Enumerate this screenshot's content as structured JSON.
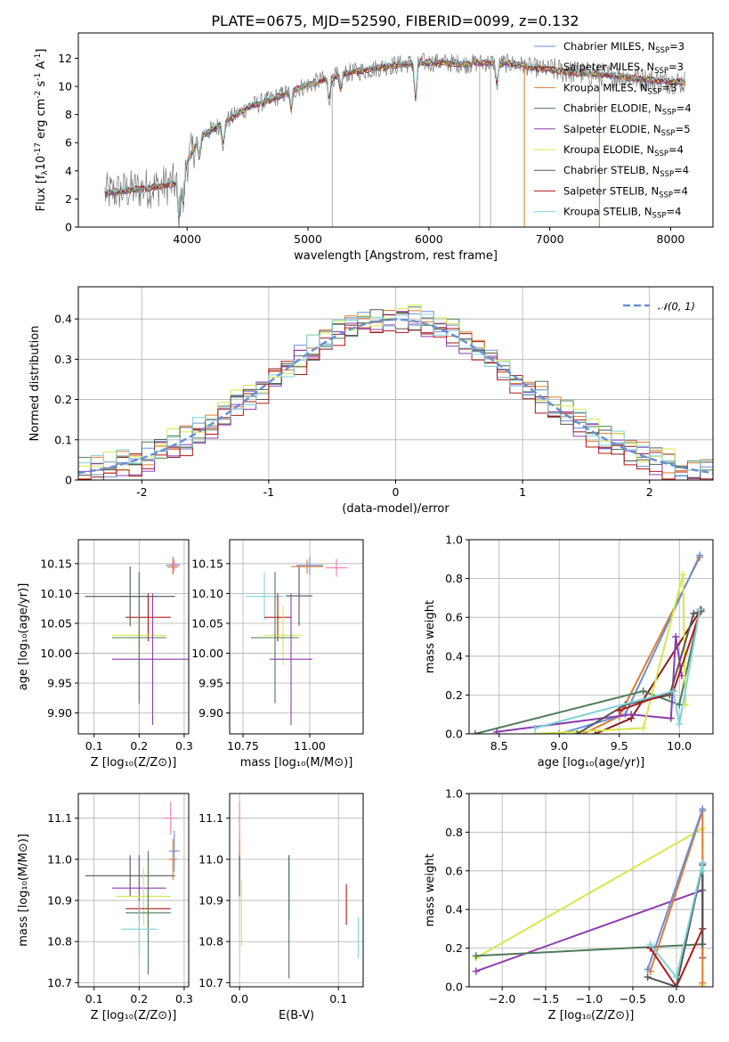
{
  "figure_title": "PLATE=0675, MJD=52590, FIBERID=0099, z=0.132",
  "colors": {
    "chabrier_miles": "#6a8fd8",
    "salpeter_miles": "#8b1a1a",
    "kroupa_miles": "#e07a2e",
    "chabrier_elodie": "#4e7a5a",
    "salpeter_elodie": "#8e3cb0",
    "kroupa_elodie": "#d4e84a",
    "chabrier_stelib": "#555555",
    "salpeter_stelib": "#b01818",
    "kroupa_stelib": "#7fd3d8",
    "data": "#777777",
    "normal": "#6a8fd8",
    "pink": "#f07ab0"
  },
  "chart_data": [
    {
      "id": "spectrum",
      "type": "line",
      "title": "PLATE=0675, MJD=52590, FIBERID=0099, z=0.132",
      "xlabel": "wavelength [Angstrom, rest frame]",
      "ylabel_parts": [
        "Flux [f",
        "λ",
        "10",
        "-17",
        " erg cm",
        "-2",
        " s",
        "-1",
        " A",
        "-1",
        "]"
      ],
      "xlim": [
        3100,
        8350
      ],
      "ylim": [
        0,
        13.8
      ],
      "xticks": [
        4000,
        5000,
        6000,
        7000,
        8000
      ],
      "yticks": [
        0,
        2,
        4,
        6,
        8,
        10,
        12
      ],
      "legend_position": "right",
      "legend": [
        {
          "label": "Chabrier MILES, N",
          "sub": "SSP",
          "suffix": "=3",
          "color_key": "chabrier_miles"
        },
        {
          "label": "Salpeter MILES, N",
          "sub": "SSP",
          "suffix": "=3",
          "color_key": "salpeter_miles"
        },
        {
          "label": "Kroupa MILES, N",
          "sub": "SSP",
          "suffix": "=3",
          "color_key": "kroupa_miles"
        },
        {
          "label": "Chabrier ELODIE, N",
          "sub": "SSP",
          "suffix": "=4",
          "color_key": "chabrier_elodie"
        },
        {
          "label": "Salpeter ELODIE, N",
          "sub": "SSP",
          "suffix": "=5",
          "color_key": "salpeter_elodie"
        },
        {
          "label": "Kroupa ELODIE, N",
          "sub": "SSP",
          "suffix": "=4",
          "color_key": "kroupa_elodie"
        },
        {
          "label": "Chabrier STELIB, N",
          "sub": "SSP",
          "suffix": "=4",
          "color_key": "chabrier_stelib"
        },
        {
          "label": "Salpeter STELIB, N",
          "sub": "SSP",
          "suffix": "=4",
          "color_key": "salpeter_stelib"
        },
        {
          "label": "Kroupa STELIB, N",
          "sub": "SSP",
          "suffix": "=4",
          "color_key": "kroupa_stelib"
        }
      ],
      "continuum": {
        "x": [
          3320,
          3500,
          3700,
          3900,
          4000,
          4100,
          4300,
          4500,
          4700,
          4900,
          5100,
          5300,
          5500,
          5700,
          5900,
          6100,
          6300,
          6500,
          6700,
          6900,
          7100,
          7300,
          7500,
          7700,
          7900,
          8100
        ],
        "y": [
          2.4,
          2.6,
          2.8,
          3.1,
          4.6,
          6.4,
          7.4,
          8.5,
          9.1,
          9.8,
          10.4,
          10.9,
          11.2,
          11.5,
          11.7,
          11.7,
          11.6,
          11.7,
          11.6,
          11.3,
          11.1,
          10.9,
          10.8,
          10.6,
          10.4,
          10.3
        ]
      }
    },
    {
      "id": "residuals",
      "type": "histogram",
      "xlabel": "(data-model)/error",
      "ylabel": "Normed distribution",
      "xlim": [
        -2.5,
        2.5
      ],
      "ylim": [
        0,
        0.48
      ],
      "xticks": [
        -2,
        -1,
        0,
        1,
        2
      ],
      "yticks": [
        0.0,
        0.1,
        0.2,
        0.3,
        0.4
      ],
      "grid": true,
      "legend_position": "top-right",
      "legend": [
        {
          "label": "𝒩(0, 1)",
          "color_key": "normal",
          "style": "dashed"
        }
      ],
      "bin_width": 0.1,
      "bins_from": -2.5,
      "series": [
        {
          "color_key": "chabrier_miles",
          "offset": 0.004
        },
        {
          "color_key": "salpeter_miles",
          "offset": -0.003
        },
        {
          "color_key": "kroupa_miles",
          "offset": 0.006
        },
        {
          "color_key": "chabrier_elodie",
          "offset": 0.01
        },
        {
          "color_key": "salpeter_elodie",
          "offset": -0.008
        },
        {
          "color_key": "kroupa_elodie",
          "offset": 0.012
        },
        {
          "color_key": "chabrier_stelib",
          "offset": 0.0
        },
        {
          "color_key": "salpeter_stelib",
          "offset": -0.012
        },
        {
          "color_key": "kroupa_stelib",
          "offset": 0.008
        }
      ]
    },
    {
      "id": "age_vs_Z",
      "type": "errorbar",
      "xlabel": "Z [log₁₀(Z/Z⊙)]",
      "ylabel": "age  [log₁₀(age/yr)]",
      "xlim": [
        0.065,
        0.31
      ],
      "ylim": [
        9.865,
        10.19
      ],
      "xticks": [
        0.1,
        0.2,
        0.3
      ],
      "xtick_labels": [
        "0.1",
        "0.2",
        "0.3"
      ],
      "yticks": [
        9.9,
        9.95,
        10.0,
        10.05,
        10.1,
        10.15
      ],
      "ytick_labels": [
        "9.90",
        "9.95",
        "10.00",
        "10.05",
        "10.10",
        "10.15"
      ],
      "grid": true,
      "points": [
        {
          "x": 0.2,
          "xerr": 0.04,
          "y": 10.095,
          "yerr": 0.04,
          "color_key": "kroupa_stelib"
        },
        {
          "x": 0.22,
          "xerr": 0.05,
          "y": 10.06,
          "yerr": 0.04,
          "color_key": "salpeter_stelib"
        },
        {
          "x": 0.2,
          "xerr": 0.06,
          "y": 10.03,
          "yerr": 0.05,
          "color_key": "kroupa_elodie"
        },
        {
          "x": 0.2,
          "xerr": 0.06,
          "y": 10.026,
          "yerr": 0.11,
          "color_key": "chabrier_elodie"
        },
        {
          "x": 0.23,
          "xerr": 0.09,
          "y": 9.99,
          "yerr": 0.11,
          "color_key": "salpeter_elodie"
        },
        {
          "x": 0.18,
          "xerr": 0.1,
          "y": 10.095,
          "yerr": 0.05,
          "color_key": "chabrier_stelib"
        },
        {
          "x": 0.275,
          "xerr": 0.016,
          "y": 10.147,
          "yerr": 0.015,
          "color_key": "chabrier_miles"
        },
        {
          "x": 0.275,
          "xerr": 0.012,
          "y": 10.144,
          "yerr": 0.012,
          "color_key": "kroupa_miles"
        },
        {
          "x": 0.278,
          "xerr": 0.01,
          "y": 10.148,
          "yerr": 0.01,
          "color_key": "pink"
        }
      ]
    },
    {
      "id": "age_vs_mass",
      "type": "errorbar",
      "xlabel": "mass [log₁₀(M/M⊙)]",
      "xlim": [
        10.7,
        11.2
      ],
      "ylim": [
        9.865,
        10.19
      ],
      "xticks": [
        10.75,
        11.0
      ],
      "xtick_labels": [
        "10.75",
        "11.00"
      ],
      "yticks": [
        9.9,
        9.95,
        10.0,
        10.05,
        10.1,
        10.15
      ],
      "ytick_labels": [
        "9.90",
        "9.95",
        "10.00",
        "10.05",
        "10.10",
        "10.15"
      ],
      "grid": true,
      "points": [
        {
          "x": 10.83,
          "xerr": 0.07,
          "y": 10.095,
          "yerr": 0.04,
          "color_key": "kroupa_stelib"
        },
        {
          "x": 10.88,
          "xerr": 0.05,
          "y": 10.06,
          "yerr": 0.04,
          "color_key": "salpeter_stelib"
        },
        {
          "x": 10.9,
          "xerr": 0.07,
          "y": 10.03,
          "yerr": 0.05,
          "color_key": "kroupa_elodie"
        },
        {
          "x": 10.87,
          "xerr": 0.09,
          "y": 10.026,
          "yerr": 0.11,
          "color_key": "chabrier_elodie"
        },
        {
          "x": 10.93,
          "xerr": 0.08,
          "y": 9.99,
          "yerr": 0.11,
          "color_key": "salpeter_elodie"
        },
        {
          "x": 10.96,
          "xerr": 0.05,
          "y": 10.096,
          "yerr": 0.05,
          "color_key": "chabrier_stelib"
        },
        {
          "x": 11.0,
          "xerr": 0.05,
          "y": 10.147,
          "yerr": 0.015,
          "color_key": "chabrier_miles"
        },
        {
          "x": 10.99,
          "xerr": 0.06,
          "y": 10.145,
          "yerr": 0.012,
          "color_key": "kroupa_miles"
        },
        {
          "x": 11.1,
          "xerr": 0.04,
          "y": 10.143,
          "yerr": 0.015,
          "color_key": "pink"
        }
      ]
    },
    {
      "id": "massweight_vs_age",
      "type": "line",
      "xlabel": "age  [log₁₀(age/yr)]",
      "ylabel": "mass weight",
      "xlim": [
        8.25,
        10.28
      ],
      "ylim": [
        0,
        1.0
      ],
      "xticks": [
        8.5,
        9.0,
        9.5,
        10.0
      ],
      "xtick_labels": [
        "8.5",
        "9.0",
        "9.5",
        "10.0"
      ],
      "yticks": [
        0,
        0.2,
        0.4,
        0.6,
        0.8,
        1.0
      ],
      "ytick_labels": [
        "0.0",
        "0.2",
        "0.4",
        "0.6",
        "0.8",
        "1.0"
      ],
      "grid": true,
      "series": [
        {
          "color_key": "kroupa_miles",
          "x": [
            9.2,
            9.5,
            10.17
          ],
          "y": [
            0.0,
            0.09,
            0.91
          ]
        },
        {
          "color_key": "chabrier_miles",
          "x": [
            9.0,
            9.55,
            10.17
          ],
          "y": [
            0.0,
            0.1,
            0.92
          ]
        },
        {
          "color_key": "salpeter_miles",
          "x": [
            9.3,
            9.6,
            10.18
          ],
          "y": [
            0.0,
            0.08,
            0.64
          ]
        },
        {
          "color_key": "chabrier_elodie",
          "x": [
            8.3,
            9.7,
            10.0,
            10.17
          ],
          "y": [
            0.0,
            0.22,
            0.15,
            0.64
          ]
        },
        {
          "color_key": "salpeter_elodie",
          "x": [
            8.48,
            9.6,
            9.93,
            9.97,
            10.02
          ],
          "y": [
            0.01,
            0.1,
            0.08,
            0.5,
            0.3
          ]
        },
        {
          "color_key": "kroupa_elodie",
          "x": [
            8.8,
            9.7,
            10.03,
            10.05
          ],
          "y": [
            0.0,
            0.03,
            0.82,
            0.15
          ]
        },
        {
          "color_key": "chabrier_stelib",
          "x": [
            9.15,
            9.55,
            9.92,
            10.12,
            10.18
          ],
          "y": [
            0.0,
            0.15,
            0.2,
            0.62,
            0.63
          ]
        },
        {
          "color_key": "salpeter_stelib",
          "x": [
            9.5,
            9.95,
            10.18
          ],
          "y": [
            0.12,
            0.22,
            0.64
          ]
        },
        {
          "color_key": "kroupa_stelib",
          "x": [
            8.8,
            9.95,
            10.0,
            10.17
          ],
          "y": [
            0.03,
            0.22,
            0.05,
            0.64
          ]
        }
      ]
    },
    {
      "id": "mass_vs_Z",
      "type": "errorbar",
      "xlabel": "Z [log₁₀(Z/Z⊙)]",
      "ylabel": "mass [log₁₀(M/M⊙)]",
      "xlim": [
        0.065,
        0.31
      ],
      "ylim": [
        10.69,
        11.16
      ],
      "xticks": [
        0.1,
        0.2,
        0.3
      ],
      "xtick_labels": [
        "0.1",
        "0.2",
        "0.3"
      ],
      "yticks": [
        10.7,
        10.8,
        10.9,
        11.0,
        11.1
      ],
      "ytick_labels": [
        "10.7",
        "10.8",
        "10.9",
        "11.0",
        "11.1"
      ],
      "grid": true,
      "points": [
        {
          "x": 0.18,
          "xerr": 0.1,
          "y": 10.96,
          "yerr": 0.05,
          "color_key": "chabrier_stelib"
        },
        {
          "x": 0.2,
          "xerr": 0.06,
          "y": 10.93,
          "yerr": 0.08,
          "color_key": "salpeter_elodie"
        },
        {
          "x": 0.21,
          "xerr": 0.06,
          "y": 10.91,
          "yerr": 0.07,
          "color_key": "kroupa_elodie"
        },
        {
          "x": 0.22,
          "xerr": 0.05,
          "y": 10.88,
          "yerr": 0.05,
          "color_key": "salpeter_stelib"
        },
        {
          "x": 0.22,
          "xerr": 0.05,
          "y": 10.87,
          "yerr": 0.15,
          "color_key": "chabrier_elodie"
        },
        {
          "x": 0.2,
          "xerr": 0.04,
          "y": 10.83,
          "yerr": 0.07,
          "color_key": "kroupa_stelib"
        },
        {
          "x": 0.275,
          "xerr": 0.01,
          "y": 11.0,
          "yerr": 0.05,
          "color_key": "kroupa_miles"
        },
        {
          "x": 0.278,
          "xerr": 0.012,
          "y": 11.02,
          "yerr": 0.05,
          "color_key": "chabrier_miles"
        },
        {
          "x": 0.27,
          "xerr": 0.015,
          "y": 11.1,
          "yerr": 0.04,
          "color_key": "pink"
        }
      ]
    },
    {
      "id": "mass_vs_ebv",
      "type": "errorbar",
      "xlabel": "E(B-V)",
      "xlim": [
        -0.01,
        0.125
      ],
      "ylim": [
        10.69,
        11.16
      ],
      "xticks": [
        0.0,
        0.1
      ],
      "xtick_labels": [
        "0.0",
        "0.1"
      ],
      "yticks": [
        10.7,
        10.8,
        10.9,
        11.0,
        11.1
      ],
      "ytick_labels": [
        "10.7",
        "10.8",
        "10.9",
        "11.0",
        "11.1"
      ],
      "grid": true,
      "points": [
        {
          "x": 0.0,
          "xerr": 0.0,
          "y": 11.06,
          "yerr": 0.08,
          "color_key": "pink"
        },
        {
          "x": 0.0,
          "xerr": 0.0,
          "y": 11.0,
          "yerr": 0.05,
          "color_key": "kroupa_miles"
        },
        {
          "x": 0.0,
          "xerr": 0.0,
          "y": 10.96,
          "yerr": 0.05,
          "color_key": "chabrier_stelib"
        },
        {
          "x": 0.002,
          "xerr": 0.0,
          "y": 10.87,
          "yerr": 0.08,
          "color_key": "kroupa_elodie"
        },
        {
          "x": 0.05,
          "xerr": 0.0,
          "y": 10.93,
          "yerr": 0.08,
          "color_key": "salpeter_elodie"
        },
        {
          "x": 0.05,
          "xerr": 0.0,
          "y": 10.86,
          "yerr": 0.15,
          "color_key": "chabrier_elodie"
        },
        {
          "x": 0.108,
          "xerr": 0.0,
          "y": 10.89,
          "yerr": 0.05,
          "color_key": "salpeter_stelib"
        },
        {
          "x": 0.12,
          "xerr": 0.0,
          "y": 10.81,
          "yerr": 0.05,
          "color_key": "kroupa_stelib"
        }
      ]
    },
    {
      "id": "massweight_vs_Z",
      "type": "line",
      "xlabel": "Z [log₁₀(Z/Z⊙)]",
      "ylabel": "mass weight",
      "xlim": [
        -2.38,
        0.42
      ],
      "ylim": [
        0,
        1.0
      ],
      "xticks": [
        -2.0,
        -1.5,
        -1.0,
        -0.5,
        0.0
      ],
      "xtick_labels": [
        "−2.0",
        "−1.5",
        "−1.0",
        "−0.5",
        "0.0"
      ],
      "yticks": [
        0,
        0.2,
        0.4,
        0.6,
        0.8,
        1.0
      ],
      "ytick_labels": [
        "0.0",
        "0.2",
        "0.4",
        "0.6",
        "0.8",
        "1.0"
      ],
      "grid": true,
      "series": [
        {
          "color_key": "kroupa_elodie",
          "x": [
            -2.3,
            0.3,
            0.3
          ],
          "y": [
            0.15,
            0.82,
            0.01
          ]
        },
        {
          "color_key": "salpeter_elodie",
          "x": [
            -2.3,
            0.3,
            0.3
          ],
          "y": [
            0.08,
            0.5,
            0.15
          ]
        },
        {
          "color_key": "chabrier_elodie",
          "x": [
            -2.3,
            0.3
          ],
          "y": [
            0.16,
            0.22
          ]
        },
        {
          "color_key": "kroupa_miles",
          "x": [
            -0.3,
            0.3,
            0.3
          ],
          "y": [
            0.08,
            0.91,
            0.02
          ]
        },
        {
          "color_key": "chabrier_miles",
          "x": [
            -0.33,
            0.3
          ],
          "y": [
            0.09,
            0.92
          ]
        },
        {
          "color_key": "salpeter_stelib",
          "x": [
            -0.3,
            0.0,
            0.3,
            0.3
          ],
          "y": [
            0.2,
            0.0,
            0.3,
            0.64
          ]
        },
        {
          "color_key": "chabrier_stelib",
          "x": [
            -0.33,
            0.0,
            0.3,
            0.3
          ],
          "y": [
            0.05,
            0.0,
            0.63,
            0.22
          ]
        },
        {
          "color_key": "kroupa_stelib",
          "x": [
            -0.3,
            0.0,
            0.3,
            0.3
          ],
          "y": [
            0.22,
            0.05,
            0.64,
            0.6
          ]
        }
      ]
    }
  ]
}
